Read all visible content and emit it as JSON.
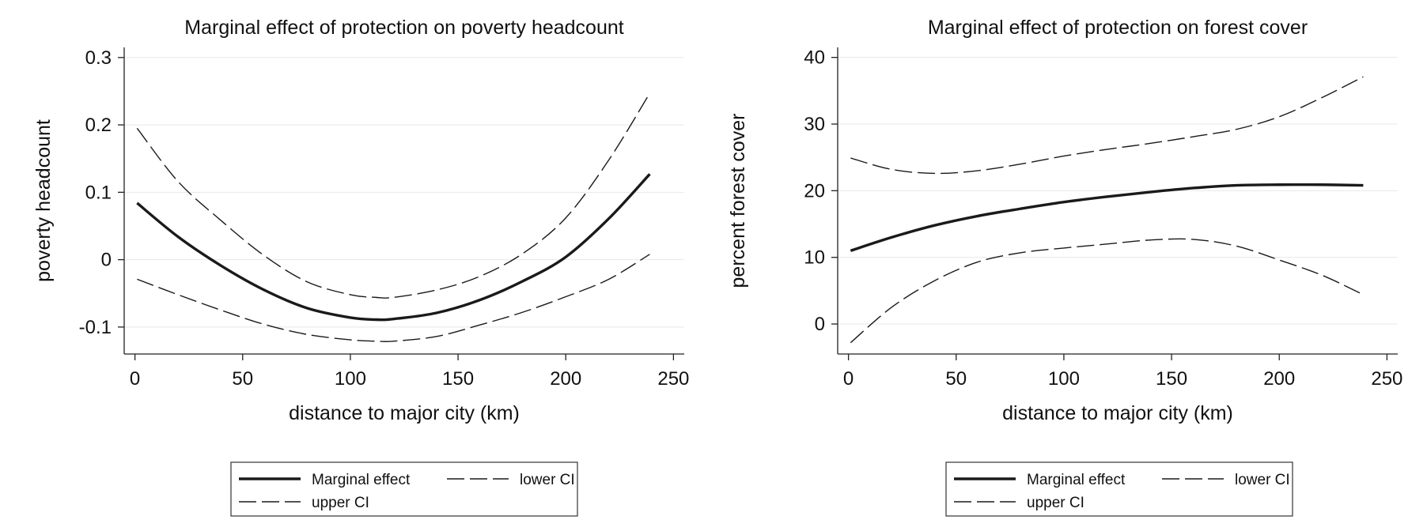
{
  "chart_data": [
    {
      "type": "line",
      "title": "Marginal effect of protection on poverty headcount",
      "xlabel": "distance to major city (km)",
      "ylabel": "poverty headcount",
      "xlim": [
        -5,
        255
      ],
      "ylim": [
        -0.14,
        0.315
      ],
      "xticks": [
        0,
        50,
        100,
        150,
        200,
        250
      ],
      "xtick_labels": [
        "0",
        "50",
        "100",
        "150",
        "200",
        "250"
      ],
      "yticks": [
        -0.1,
        0,
        0.1,
        0.2,
        0.3
      ],
      "ytick_labels": [
        "-0.1",
        "0",
        "0.1",
        "0.2",
        "0.3"
      ],
      "grid": true,
      "legend_position": "bottom",
      "legend": [
        "Marginal effect",
        "lower CI",
        "upper CI"
      ],
      "x": [
        1,
        20,
        40,
        60,
        80,
        100,
        112,
        120,
        140,
        160,
        180,
        200,
        220,
        239
      ],
      "series": [
        {
          "name": "Marginal effect",
          "style": "solid",
          "values": [
            0.084,
            0.034,
            -0.009,
            -0.045,
            -0.072,
            -0.086,
            -0.089,
            -0.088,
            -0.079,
            -0.06,
            -0.032,
            0.004,
            0.061,
            0.127
          ]
        },
        {
          "name": "lower CI",
          "style": "dashed",
          "values": [
            -0.029,
            -0.052,
            -0.075,
            -0.096,
            -0.111,
            -0.119,
            -0.121,
            -0.121,
            -0.114,
            -0.097,
            -0.078,
            -0.055,
            -0.029,
            0.008
          ]
        },
        {
          "name": "upper CI",
          "style": "dashed",
          "values": [
            0.195,
            0.116,
            0.058,
            0.006,
            -0.033,
            -0.052,
            -0.056,
            -0.056,
            -0.045,
            -0.025,
            0.009,
            0.062,
            0.148,
            0.247
          ]
        }
      ]
    },
    {
      "type": "line",
      "title": "Marginal effect of protection on forest cover",
      "xlabel": "distance to major city (km)",
      "ylabel": "percent forest cover",
      "xlim": [
        -5,
        255
      ],
      "ylim": [
        -4.5,
        41.5
      ],
      "xticks": [
        0,
        50,
        100,
        150,
        200,
        250
      ],
      "xtick_labels": [
        "0",
        "50",
        "100",
        "150",
        "200",
        "250"
      ],
      "yticks": [
        0,
        10,
        20,
        30,
        40
      ],
      "ytick_labels": [
        "0",
        "10",
        "20",
        "30",
        "40"
      ],
      "grid": true,
      "legend_position": "bottom",
      "legend": [
        "Marginal effect",
        "lower CI",
        "upper CI"
      ],
      "x": [
        1,
        20,
        40,
        60,
        80,
        100,
        120,
        140,
        160,
        180,
        200,
        220,
        239
      ],
      "series": [
        {
          "name": "Marginal effect",
          "style": "solid",
          "values": [
            11.0,
            13.0,
            14.8,
            16.2,
            17.3,
            18.3,
            19.1,
            19.8,
            20.4,
            20.8,
            20.9,
            20.9,
            20.8
          ]
        },
        {
          "name": "lower CI",
          "style": "dashed",
          "values": [
            -2.8,
            2.5,
            6.5,
            9.3,
            10.7,
            11.4,
            12.0,
            12.6,
            12.7,
            11.7,
            9.6,
            7.3,
            4.4
          ]
        },
        {
          "name": "upper CI",
          "style": "dashed",
          "values": [
            24.9,
            23.2,
            22.6,
            23.0,
            24.0,
            25.2,
            26.2,
            27.1,
            28.1,
            29.2,
            31.1,
            34.0,
            37.1
          ]
        }
      ]
    }
  ]
}
